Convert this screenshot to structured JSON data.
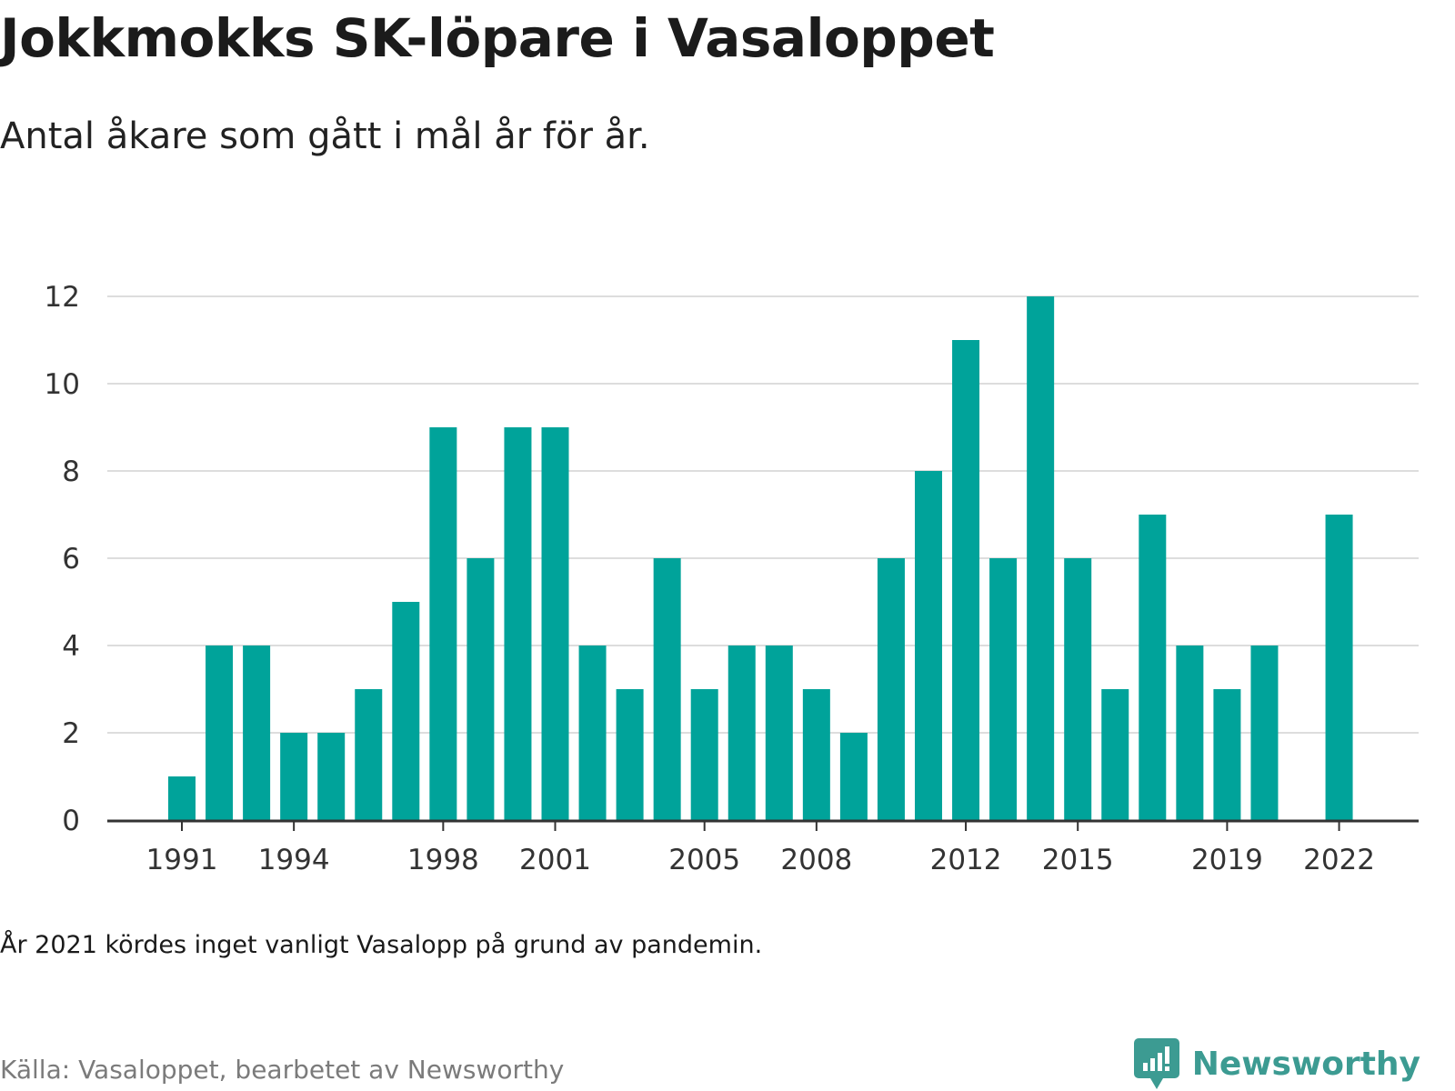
{
  "title": "Jokkmokks SK-löpare i Vasaloppet",
  "subtitle": "Antal åkare som gått i mål år för år.",
  "note": "År 2021 kördes inget vanligt Vasalopp på grund av pandemin.",
  "source": "Källa: Vasaloppet, bearbetet av Newsworthy",
  "brand": {
    "name": "Newsworthy",
    "icon": "newsworthy-logo-icon",
    "color": "#3c9b92"
  },
  "chart_data": {
    "type": "bar",
    "title": "Jokkmokks SK-löpare i Vasaloppet",
    "subtitle": "Antal åkare som gått i mål år för år.",
    "xlabel": "",
    "ylabel": "",
    "categories": [
      1991,
      1992,
      1993,
      1994,
      1995,
      1996,
      1997,
      1998,
      1999,
      2000,
      2001,
      2002,
      2003,
      2004,
      2005,
      2006,
      2007,
      2008,
      2009,
      2010,
      2011,
      2012,
      2013,
      2014,
      2015,
      2016,
      2017,
      2018,
      2019,
      2020,
      2021,
      2022
    ],
    "values": [
      1,
      4,
      4,
      2,
      2,
      3,
      5,
      9,
      6,
      9,
      9,
      4,
      3,
      6,
      3,
      4,
      4,
      3,
      2,
      6,
      8,
      11,
      6,
      12,
      6,
      3,
      7,
      4,
      3,
      4,
      null,
      7
    ],
    "x_tick_labels": [
      "1991",
      "1994",
      "1998",
      "2001",
      "2005",
      "2008",
      "2012",
      "2015",
      "2019",
      "2022"
    ],
    "y_ticks": [
      0,
      2,
      4,
      6,
      8,
      10,
      12
    ],
    "ylim": [
      0,
      12
    ],
    "grid": true,
    "bar_color": "#00a39a",
    "gridline_color": "#dddddd",
    "axis_color": "#333333"
  }
}
